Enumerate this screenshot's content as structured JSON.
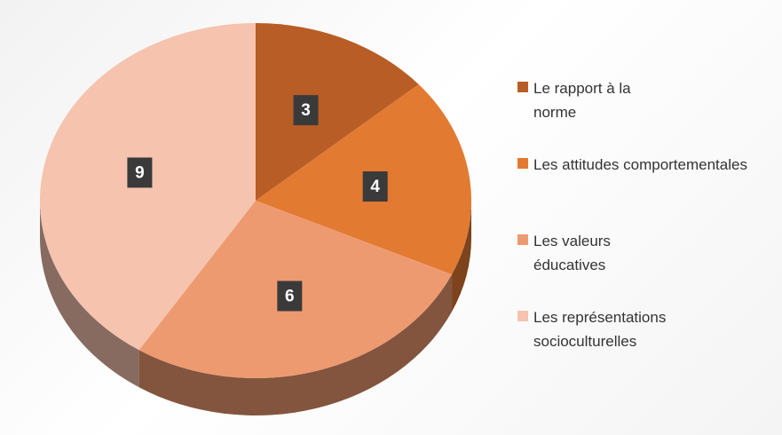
{
  "chart_data": {
    "type": "pie",
    "categories": [
      "Le rapport à la norme",
      "Les attitudes comportementales",
      "Les valeurs éducatives",
      "Les représentations socioculturelles"
    ],
    "values": [
      3,
      4,
      6,
      9
    ],
    "colors": [
      "#b95d26",
      "#e27a32",
      "#ee9a70",
      "#f5c3ae"
    ],
    "legend": "right"
  }
}
